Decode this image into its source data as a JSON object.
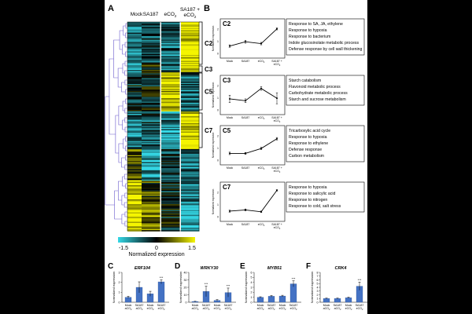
{
  "panels": {
    "A": {
      "letter": "A"
    },
    "B": {
      "letter": "B"
    }
  },
  "heatmap": {
    "columns": [
      {
        "lines": [
          "Mock"
        ]
      },
      {
        "lines": [
          "SA187"
        ]
      },
      {
        "lines": [
          "eCO",
          "2"
        ]
      },
      {
        "lines": [
          "SA187 +",
          "eCO",
          "2"
        ]
      }
    ],
    "clusters": [
      "C2",
      "C3",
      "C5",
      "C7"
    ]
  },
  "colorbar": {
    "min": "-1.5",
    "mid": "0",
    "max": "1.5",
    "label": "Normalized expression",
    "colors": [
      "#35d8e6",
      "#000000",
      "#f5f500"
    ]
  },
  "chart_data": [
    {
      "type": "line",
      "panel": "B",
      "cluster": "C2",
      "categories": [
        "Mock",
        "SA187",
        "eCO2",
        "SA187 + eCO2"
      ],
      "values": [
        0.6,
        0.95,
        0.8,
        2.0
      ],
      "errors": [
        0.1,
        0.12,
        0.1,
        0.08
      ],
      "ylim": [
        0,
        2.5
      ],
      "ylabel": "Normalized expression",
      "terms": [
        "Response to SA, JA, ethylene",
        "Response to hypoxia",
        "Response to bacterium",
        "Indole glucosinolate metabolic process",
        "Defense response by cell wall thickening"
      ]
    },
    {
      "type": "line",
      "panel": "B",
      "cluster": "C3",
      "categories": [
        "Mock",
        "SA187",
        "eCO2",
        "SA187 + eCO2"
      ],
      "values": [
        0.9,
        0.75,
        1.75,
        0.95
      ],
      "errors": [
        0.3,
        0.15,
        0.15,
        0.45
      ],
      "ylim": [
        0,
        2.5
      ],
      "ylabel": "Normalized expression",
      "terms": [
        "Starch catabolism",
        "Flavonoid metabolic process",
        "Carbohydrate metabolic process",
        "Starch and sucrose metabolism"
      ]
    },
    {
      "type": "line",
      "panel": "B",
      "cluster": "C5",
      "categories": [
        "Mock",
        "SA187",
        "eCO2",
        "SA187 + eCO2"
      ],
      "values": [
        0.55,
        0.55,
        0.95,
        1.75
      ],
      "errors": [
        0.1,
        0.08,
        0.1,
        0.1
      ],
      "ylim": [
        0,
        2.5
      ],
      "ylabel": "Normalized expression",
      "terms": [
        "Tricarboxylic acid cycle",
        "Response to hypoxia",
        "Response to ethylene",
        "Defense response",
        "Carbon metabolism"
      ]
    },
    {
      "type": "line",
      "panel": "B",
      "cluster": "C7",
      "categories": [
        "Mock",
        "SA187",
        "eCO2",
        "SA187 + eCO2"
      ],
      "values": [
        0.45,
        0.55,
        0.4,
        2.15
      ],
      "errors": [
        0.08,
        0.08,
        0.06,
        0.06
      ],
      "ylim": [
        0,
        2.5
      ],
      "ylabel": "Normalized expression",
      "terms": [
        "Response to hypoxia",
        "Response to salicylic acid",
        "Response to nitrogen",
        "Response to cold, salt stress"
      ]
    },
    {
      "type": "bar",
      "panel": "C",
      "gene": "ERF104",
      "categories": [
        "Mock aCO2",
        "SA187 aCO2",
        "Mock eCO2",
        "SA187 eCO2"
      ],
      "values": [
        0.5,
        1.5,
        0.85,
        2.05
      ],
      "errors": [
        0.1,
        0.55,
        0.25,
        0.2
      ],
      "significance": [
        "",
        "",
        "",
        "***"
      ],
      "ylim": [
        0,
        3
      ],
      "yticks": [
        0,
        1,
        2,
        3
      ],
      "ylabel": "Normalized expression"
    },
    {
      "type": "bar",
      "panel": "D",
      "gene": "WRKY30",
      "categories": [
        "Mock aCO2",
        "SA187 aCO2",
        "Mock eCO2",
        "SA187 eCO2"
      ],
      "values": [
        1,
        14.5,
        2.5,
        13
      ],
      "errors": [
        0.3,
        7,
        1,
        6
      ],
      "significance": [
        "",
        "***",
        "",
        "***"
      ],
      "ylim": [
        0,
        40
      ],
      "yticks": [
        0,
        10,
        20,
        30,
        40
      ],
      "ylabel": "Normalized expression"
    },
    {
      "type": "bar",
      "panel": "E",
      "gene": "MYB51",
      "categories": [
        "Mock aCO2",
        "SA187 aCO2",
        "Mock eCO2",
        "SA187 eCO2"
      ],
      "values": [
        1,
        1.2,
        1.25,
        3.7
      ],
      "errors": [
        0.1,
        0.15,
        0.15,
        0.6
      ],
      "significance": [
        "",
        "",
        "",
        "***"
      ],
      "ylim": [
        0,
        6
      ],
      "yticks": [
        0,
        1,
        2,
        3,
        4,
        5,
        6
      ],
      "ylabel": "Normalized expression"
    },
    {
      "type": "bar",
      "panel": "F",
      "gene": "CRK4",
      "categories": [
        "Mock aCO2",
        "SA187 aCO2",
        "Mock eCO2",
        "SA187 eCO2"
      ],
      "values": [
        1,
        1,
        1.2,
        4.3
      ],
      "errors": [
        0.1,
        0.1,
        0.15,
        1.1
      ],
      "significance": [
        "",
        "",
        "",
        "***"
      ],
      "ylim": [
        0,
        8
      ],
      "yticks": [
        0,
        1,
        2,
        3,
        4,
        5,
        6,
        7,
        8
      ],
      "ylabel": "Normalized expression"
    }
  ]
}
